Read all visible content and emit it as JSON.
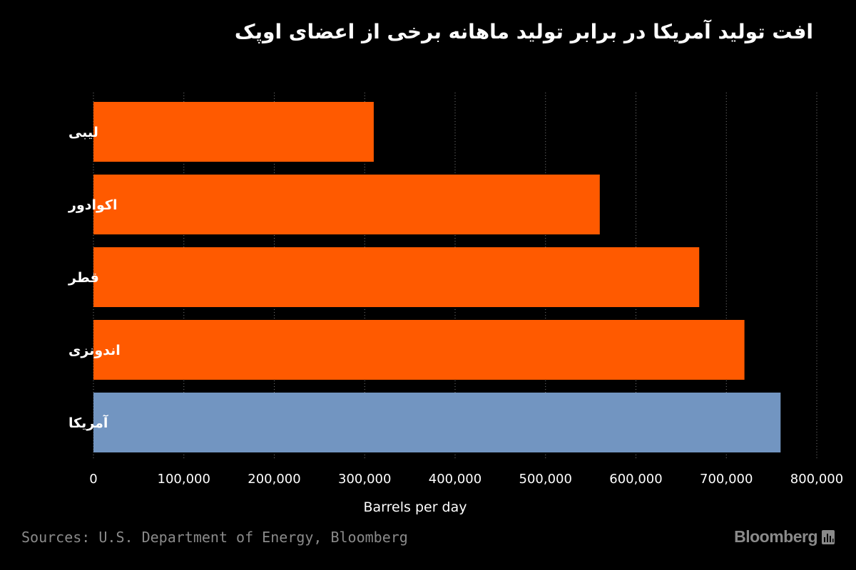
{
  "chart_data": {
    "type": "bar",
    "orientation": "horizontal",
    "title": "افت تولید آمریکا در برابر تولید ماهانه برخی از اعضای اوپک",
    "xlabel": "Barrels per day",
    "ylabel": "",
    "xlim": [
      0,
      800000
    ],
    "xticks": [
      0,
      100000,
      200000,
      300000,
      400000,
      500000,
      600000,
      700000,
      800000
    ],
    "xtick_labels": [
      "0",
      "100,000",
      "200,000",
      "300,000",
      "400,000",
      "500,000",
      "600,000",
      "700,000",
      "800,000"
    ],
    "grid": "vertical-dotted",
    "categories": [
      "لیبی",
      "اکوادور",
      "قطر",
      "اندونزی",
      "آمریکا"
    ],
    "values": [
      310000,
      560000,
      670000,
      720000,
      760000
    ],
    "colors": [
      "#ff5a00",
      "#ff5a00",
      "#ff5a00",
      "#ff5a00",
      "#7295c1"
    ]
  },
  "footer": {
    "source": "Sources: U.S. Department of Energy, Bloomberg",
    "brand": "Bloomberg",
    "brand_icon": "bloomberg-chart-icon"
  }
}
